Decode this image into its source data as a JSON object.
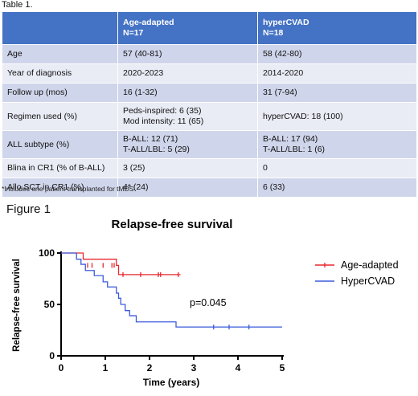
{
  "table": {
    "caption": "Table 1.",
    "headers": [
      {
        "line1": "",
        "line2": ""
      },
      {
        "line1": "Age-adapted",
        "line2": "N=17"
      },
      {
        "line1": "hyperCVAD",
        "line2": "N=18"
      }
    ],
    "rows": [
      [
        "Age",
        "57 (40-81)",
        "58 (42-80)"
      ],
      [
        "Year of diagnosis",
        "2020-2023",
        "2014-2020"
      ],
      [
        "Follow up (mos)",
        "16 (1-32)",
        "31 (7-94)"
      ],
      [
        "Regimen used (%)",
        [
          "Peds-inspired: 6 (35)",
          "Mod intensity: 11 (65)"
        ],
        "hyperCVAD: 18 (100)"
      ],
      [
        "ALL subtype (%)",
        [
          "B-ALL: 12 (71)",
          "T-ALL/LBL: 5 (29)"
        ],
        [
          "B-ALL: 17 (94)",
          "T-ALL/LBL: 1 (6)"
        ]
      ],
      [
        "Blina in CR1 (% of B-ALL)",
        "3 (25)",
        "0"
      ],
      [
        "Allo SCT in CR1 (%)",
        "4* (24)",
        "6 (33)"
      ]
    ],
    "footnote": "*Includes one patient transplanted for tMDS"
  },
  "figure_label": "Figure 1",
  "chart_data": {
    "type": "line",
    "title": "Relapse-free survival",
    "xlabel": "Time (years)",
    "ylabel": "Relapse-free survival",
    "xlim": [
      0,
      5
    ],
    "ylim": [
      0,
      100
    ],
    "xticks": [
      "0",
      "1",
      "2",
      "3",
      "4",
      "5"
    ],
    "yticks": [
      "0",
      "50",
      "100"
    ],
    "annotation": "p=0.045",
    "legend_position": "right",
    "series": [
      {
        "name": "Age-adapted",
        "color": "#e8262b",
        "step": [
          [
            0,
            100
          ],
          [
            0.5,
            94
          ],
          [
            1.25,
            88
          ],
          [
            1.3,
            79
          ],
          [
            2.7,
            79
          ]
        ],
        "censored": [
          [
            0.6,
            88
          ],
          [
            0.7,
            88
          ],
          [
            0.95,
            88
          ],
          [
            1.15,
            88
          ],
          [
            1.2,
            88
          ],
          [
            1.4,
            79
          ],
          [
            1.8,
            79
          ],
          [
            2.2,
            79
          ],
          [
            2.25,
            79
          ],
          [
            2.65,
            79
          ]
        ]
      },
      {
        "name": "HyperCVAD",
        "color": "#3b5bdb",
        "step": [
          [
            0,
            100
          ],
          [
            0.35,
            94
          ],
          [
            0.45,
            89
          ],
          [
            0.55,
            83
          ],
          [
            0.75,
            78
          ],
          [
            0.95,
            72
          ],
          [
            1.05,
            67
          ],
          [
            1.25,
            61
          ],
          [
            1.3,
            56
          ],
          [
            1.35,
            50
          ],
          [
            1.45,
            44
          ],
          [
            1.55,
            39
          ],
          [
            1.7,
            33
          ],
          [
            2.6,
            28
          ],
          [
            5,
            28
          ]
        ],
        "censored": [
          [
            3.45,
            28
          ],
          [
            3.8,
            28
          ],
          [
            4.25,
            28
          ]
        ]
      }
    ]
  }
}
